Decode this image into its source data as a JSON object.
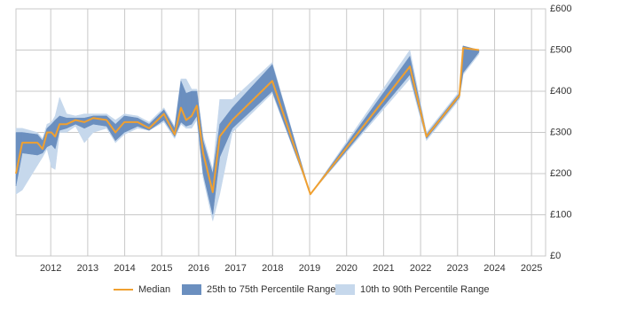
{
  "chart_data": {
    "type": "band-line",
    "x": [
      2011.06,
      2011.23,
      2011.64,
      2011.78,
      2011.9,
      2012.02,
      2012.12,
      2012.24,
      2012.43,
      2012.67,
      2012.91,
      2013.15,
      2013.51,
      2013.75,
      2013.99,
      2014.35,
      2014.66,
      2015.06,
      2015.35,
      2015.52,
      2015.66,
      2015.81,
      2015.95,
      2016.12,
      2016.38,
      2016.57,
      2016.91,
      2017.99,
      2019.02,
      2021.71,
      2022.16,
      2023.05,
      2023.15,
      2023.58
    ],
    "series": [
      {
        "name": "10th to 90th Percentile Range",
        "color": "#c6d8ec",
        "lower": [
          150,
          160,
          220,
          240,
          260,
          215,
          210,
          300,
          300,
          315,
          275,
          300,
          310,
          275,
          295,
          310,
          305,
          325,
          285,
          320,
          310,
          310,
          330,
          190,
          85,
          150,
          300,
          395,
          150,
          430,
          280,
          380,
          440,
          490
        ],
        "upper": [
          310,
          310,
          300,
          285,
          320,
          325,
          340,
          385,
          345,
          340,
          345,
          345,
          345,
          330,
          345,
          340,
          325,
          360,
          315,
          430,
          430,
          405,
          405,
          290,
          210,
          380,
          380,
          470,
          150,
          500,
          300,
          400,
          510,
          500
        ]
      },
      {
        "name": "25th to 75th Percentile Range",
        "color": "#6b8fbf",
        "lower": [
          170,
          250,
          245,
          250,
          265,
          270,
          260,
          305,
          310,
          320,
          310,
          320,
          315,
          280,
          300,
          315,
          305,
          330,
          290,
          325,
          315,
          320,
          340,
          200,
          100,
          240,
          310,
          400,
          150,
          440,
          285,
          385,
          445,
          495
        ],
        "upper": [
          300,
          300,
          295,
          280,
          310,
          320,
          330,
          340,
          335,
          335,
          335,
          340,
          340,
          320,
          340,
          335,
          320,
          355,
          310,
          425,
          395,
          400,
          400,
          280,
          200,
          320,
          360,
          465,
          150,
          485,
          295,
          395,
          510,
          500
        ]
      },
      {
        "name": "Median",
        "color": "#f0a030",
        "values": [
          200,
          275,
          275,
          260,
          300,
          300,
          290,
          320,
          320,
          330,
          325,
          335,
          330,
          300,
          325,
          325,
          310,
          345,
          295,
          360,
          330,
          340,
          365,
          250,
          155,
          290,
          330,
          425,
          150,
          460,
          290,
          390,
          505,
          500
        ]
      }
    ],
    "xlim": [
      2011.06,
      2025.38
    ],
    "xticks": [
      2012,
      2013,
      2014,
      2015,
      2016,
      2017,
      2018,
      2019,
      2020,
      2021,
      2022,
      2023,
      2024,
      2025
    ],
    "ylim": [
      0,
      600
    ],
    "yticks": [
      {
        "value": 0,
        "label": "£0"
      },
      {
        "value": 100,
        "label": "£100"
      },
      {
        "value": 200,
        "label": "£200"
      },
      {
        "value": 300,
        "label": "£300"
      },
      {
        "value": 400,
        "label": "£400"
      },
      {
        "value": 500,
        "label": "£500"
      },
      {
        "value": 600,
        "label": "£600"
      }
    ],
    "grid": true
  }
}
